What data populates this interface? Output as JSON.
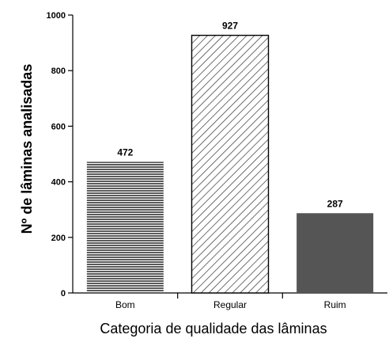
{
  "chart_data": {
    "type": "bar",
    "categories": [
      "Bom",
      "Regular",
      "Ruim"
    ],
    "values": [
      472,
      927,
      287
    ],
    "data_labels": [
      "472",
      "927",
      "287"
    ],
    "xlabel": "Categoria de qualidade das lâminas",
    "ylabel": "Nº de lâminas analisadas",
    "ylim": [
      0,
      1000
    ],
    "yticks": [
      0,
      200,
      400,
      600,
      800,
      1000
    ],
    "grid": false,
    "legend": "none",
    "bar_fills": [
      "horizontal-stripes",
      "diagonal-hatch",
      "solid-gray"
    ],
    "colors": {
      "bar_dark": "#555555",
      "axis": "#000000",
      "background": "#ffffff"
    }
  }
}
